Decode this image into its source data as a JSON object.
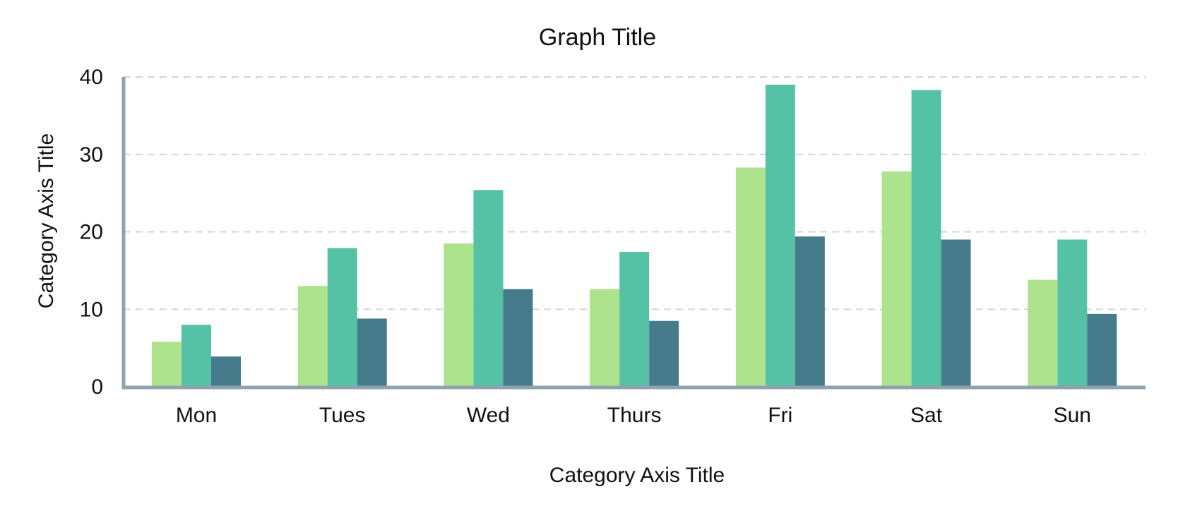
{
  "chart_data": {
    "type": "bar",
    "title": "Graph Title",
    "xlabel": "Category Axis Title",
    "ylabel": "Category Axis Title",
    "categories": [
      "Mon",
      "Tues",
      "Wed",
      "Thurs",
      "Fri",
      "Sat",
      "Sun"
    ],
    "series": [
      {
        "values": [
          5.8,
          13.0,
          18.5,
          12.6,
          28.3,
          27.8,
          13.8
        ]
      },
      {
        "values": [
          8.0,
          17.9,
          25.4,
          17.4,
          39.0,
          38.3,
          19.0
        ]
      },
      {
        "values": [
          3.9,
          8.8,
          12.6,
          8.5,
          19.4,
          19.0,
          9.4
        ]
      }
    ],
    "ylim": [
      0,
      40
    ],
    "yticks": [
      0,
      10,
      20,
      30,
      40
    ],
    "grid": true,
    "colors": {
      "series": [
        "#ade38d",
        "#55c1a5",
        "#467b8c"
      ],
      "axis": "#8fa2ad",
      "grid": "#d6d6d6"
    }
  }
}
